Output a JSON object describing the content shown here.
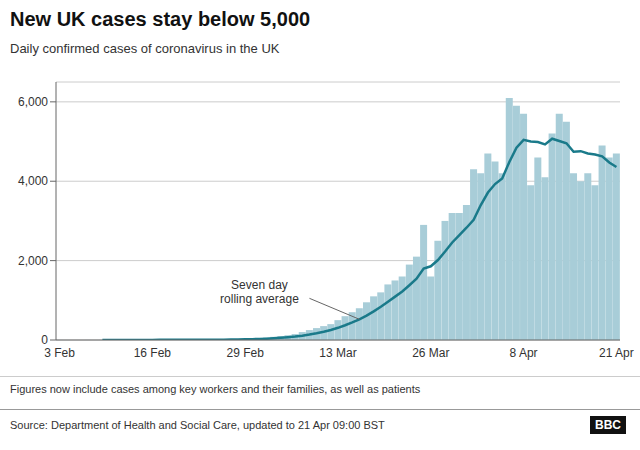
{
  "chart_data": {
    "type": "bar",
    "title": "New UK cases stay below 5,000",
    "subtitle": "Daily confirmed cases of coronavirus in the UK",
    "footnote": "Figures now include cases among key workers and their families, as well as patients",
    "source": "Source: Department of Health and Social Care, updated to 21 Apr 09:00 BST",
    "logo": "BBC",
    "annotation": "Seven day\nrolling average",
    "categories": [
      "3 Feb",
      null,
      null,
      null,
      null,
      null,
      null,
      null,
      null,
      null,
      null,
      null,
      null,
      "16 Feb",
      null,
      null,
      null,
      null,
      null,
      null,
      null,
      null,
      null,
      null,
      null,
      null,
      "29 Feb",
      null,
      null,
      null,
      null,
      null,
      null,
      null,
      null,
      null,
      null,
      null,
      null,
      "13 Mar",
      null,
      null,
      null,
      null,
      null,
      null,
      null,
      null,
      null,
      null,
      null,
      null,
      "26 Mar",
      null,
      null,
      null,
      null,
      null,
      null,
      null,
      null,
      null,
      null,
      null,
      null,
      "8 Apr",
      null,
      null,
      null,
      null,
      null,
      null,
      null,
      null,
      null,
      null,
      null,
      null,
      "21 Apr"
    ],
    "series": [
      {
        "type": "bar",
        "color": "#a8cdd8",
        "values": [
          2,
          1,
          0,
          0,
          2,
          1,
          3,
          0,
          0,
          4,
          3,
          1,
          2,
          5,
          8,
          3,
          3,
          5,
          4,
          6,
          9,
          10,
          14,
          10,
          25,
          20,
          30,
          40,
          50,
          60,
          80,
          100,
          120,
          150,
          200,
          250,
          300,
          350,
          400,
          500,
          600,
          700,
          800,
          950,
          1100,
          1200,
          1400,
          1500,
          1600,
          1900,
          2100,
          2900,
          1600,
          2500,
          3000,
          3200,
          3200,
          3400,
          4300,
          4200,
          4700,
          4500,
          4200,
          6100,
          5900,
          5700,
          3900,
          4600,
          4100,
          5200,
          5700,
          5500,
          4200,
          4000,
          4200,
          3900,
          4900,
          4600,
          4700
        ]
      },
      {
        "type": "line",
        "color": "#1a7a8a",
        "values": [
          null,
          null,
          null,
          null,
          null,
          null,
          1.29,
          1.0,
          0.86,
          1.43,
          1.86,
          1.71,
          1.86,
          2.14,
          3.29,
          3.71,
          3.57,
          3.86,
          4.29,
          4.86,
          5.43,
          5.71,
          7.29,
          8.29,
          11.14,
          13.43,
          16.86,
          21.29,
          27.0,
          33.57,
          43.57,
          54.29,
          68.57,
          85.71,
          108.57,
          137.14,
          171.43,
          210.0,
          252.86,
          307.14,
          371.43,
          442.86,
          521.43,
          614.29,
          721.43,
          835.71,
          964.29,
          1092.86,
          1221.43,
          1378.57,
          1542.86,
          1800.0,
          1857.14,
          2014.29,
          2228.57,
          2457.14,
          2642.86,
          2828.57,
          3028.57,
          3400.0,
          3714.29,
          3928.57,
          4071.43,
          4485.71,
          4842.86,
          5042.86,
          5000.0,
          4985.71,
          4928.57,
          5071.43,
          5014.29,
          4957.14,
          4742.86,
          4757.14,
          4700.0,
          4671.43,
          4628.57,
          4471.43,
          4357.14
        ]
      }
    ],
    "ylim": [
      0,
      6500
    ],
    "yticks": [
      0,
      {
        "value": 2000,
        "label": "2,000"
      },
      {
        "value": 4000,
        "label": "4,000"
      },
      {
        "value": 6000,
        "label": "6,000"
      }
    ],
    "grid": true
  }
}
